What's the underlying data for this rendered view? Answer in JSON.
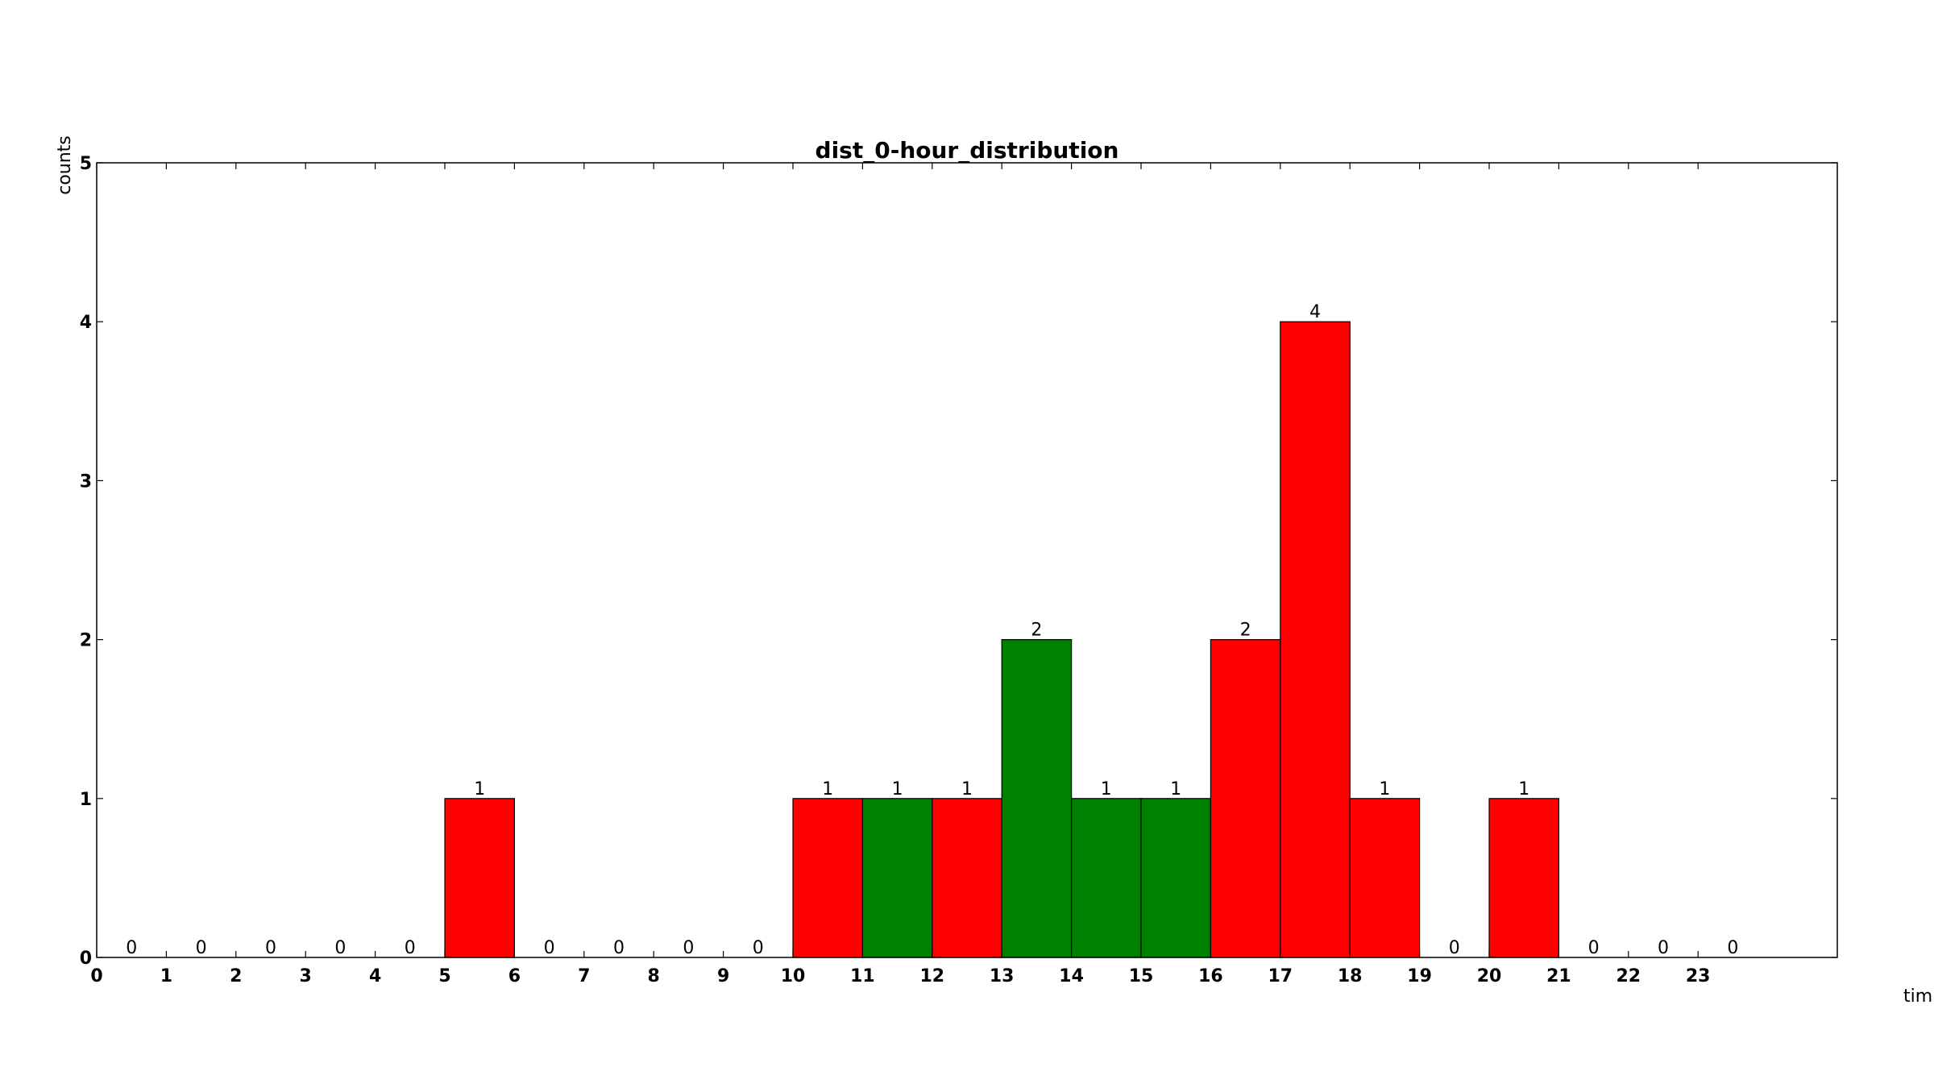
{
  "chart_data": {
    "type": "bar",
    "title": "dist_0-hour_distribution",
    "xlabel": "tim",
    "ylabel": "counts",
    "categories": [
      "0",
      "1",
      "2",
      "3",
      "4",
      "5",
      "6",
      "7",
      "8",
      "9",
      "10",
      "11",
      "12",
      "13",
      "14",
      "15",
      "16",
      "17",
      "18",
      "19",
      "20",
      "21",
      "22",
      "23"
    ],
    "values": [
      0,
      0,
      0,
      0,
      0,
      1,
      0,
      0,
      0,
      0,
      1,
      1,
      1,
      2,
      1,
      1,
      2,
      4,
      1,
      0,
      1,
      0,
      0,
      0
    ],
    "bar_colors": [
      "#ff0000",
      "#ff0000",
      "#ff0000",
      "#ff0000",
      "#ff0000",
      "#ff0000",
      "#ff0000",
      "#ff0000",
      "#ff0000",
      "#ff0000",
      "#ff0000",
      "#008000",
      "#ff0000",
      "#008000",
      "#008000",
      "#008000",
      "#ff0000",
      "#ff0000",
      "#ff0000",
      "#ff0000",
      "#ff0000",
      "#ff0000",
      "#ff0000",
      "#ff0000"
    ],
    "xticks": [
      "0",
      "1",
      "2",
      "3",
      "4",
      "5",
      "6",
      "7",
      "8",
      "9",
      "10",
      "11",
      "12",
      "13",
      "14",
      "15",
      "16",
      "17",
      "18",
      "19",
      "20",
      "21",
      "22",
      "23"
    ],
    "yticks": [
      "0",
      "1",
      "2",
      "3",
      "4",
      "5"
    ],
    "xlim": [
      0,
      25
    ],
    "ylim": [
      0,
      5
    ],
    "grid": false,
    "legend": "none"
  }
}
